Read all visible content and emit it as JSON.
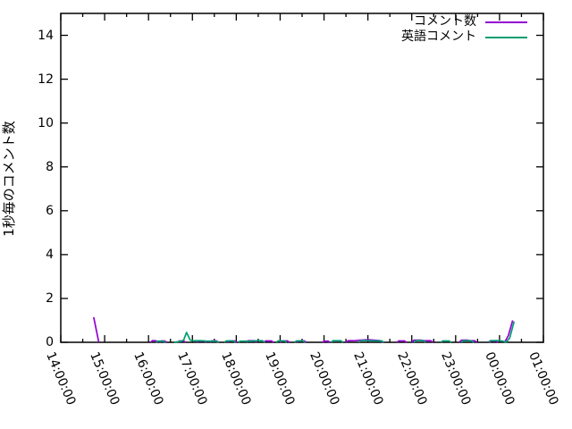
{
  "chart_data": {
    "type": "line",
    "title": "",
    "xlabel": "",
    "ylabel": "1秒毎のコメント数",
    "ylim": [
      0,
      15
    ],
    "ytick_values": [
      0,
      2,
      4,
      6,
      8,
      10,
      12,
      14
    ],
    "xtick_labels": [
      "14:00:00",
      "15:00:00",
      "16:00:00",
      "17:00:00",
      "18:00:00",
      "19:00:00",
      "20:00:00",
      "21:00:00",
      "22:00:00",
      "23:00:00",
      "00:00:00",
      "01:00:00"
    ],
    "x_minor_ticks_every_minutes": 30,
    "grid": false,
    "legend_position": "top-right-inside",
    "background_color": "#ffffff",
    "border_color": "#000000",
    "text_color": "#000000",
    "series": [
      {
        "name": "コメント数",
        "color": "#9400d3",
        "segments": [
          [
            [
              "14:45",
              1.15
            ],
            [
              "14:52",
              0
            ]
          ],
          [
            [
              "16:03",
              0
            ],
            [
              "16:05",
              0.07
            ],
            [
              "16:10",
              0.07
            ],
            [
              "16:13",
              0
            ]
          ],
          [
            [
              "16:15",
              0
            ],
            [
              "16:17",
              0.06
            ],
            [
              "16:22",
              0.06
            ],
            [
              "16:25",
              0
            ]
          ],
          [
            [
              "16:40",
              0
            ],
            [
              "16:42",
              0.06
            ],
            [
              "16:48",
              0.06
            ],
            [
              "16:51",
              0
            ]
          ],
          [
            [
              "17:06",
              0
            ],
            [
              "17:08",
              0.06
            ],
            [
              "17:16",
              0.06
            ],
            [
              "17:19",
              0
            ]
          ],
          [
            [
              "17:24",
              0
            ],
            [
              "17:26",
              0.06
            ],
            [
              "17:33",
              0.06
            ],
            [
              "17:36",
              0
            ]
          ],
          [
            [
              "17:48",
              0
            ],
            [
              "17:50",
              0.06
            ],
            [
              "17:58",
              0.06
            ],
            [
              "18:01",
              0
            ]
          ],
          [
            [
              "18:14",
              0
            ],
            [
              "18:16",
              0.07
            ],
            [
              "18:25",
              0.07
            ],
            [
              "18:28",
              0
            ]
          ],
          [
            [
              "18:38",
              0
            ],
            [
              "18:40",
              0.06
            ],
            [
              "18:48",
              0.06
            ],
            [
              "18:51",
              0
            ]
          ],
          [
            [
              "19:00",
              0
            ],
            [
              "19:02",
              0.06
            ],
            [
              "19:10",
              0.06
            ],
            [
              "19:13",
              0
            ]
          ],
          [
            [
              "19:23",
              0
            ],
            [
              "19:25",
              0.06
            ],
            [
              "19:33",
              0.06
            ],
            [
              "19:36",
              0
            ]
          ],
          [
            [
              "19:58",
              0
            ],
            [
              "20:00",
              0.05
            ],
            [
              "20:06",
              0.05
            ],
            [
              "20:08",
              0
            ]
          ],
          [
            [
              "20:30",
              0
            ],
            [
              "20:33",
              0.07
            ],
            [
              "20:43",
              0.08
            ],
            [
              "20:50",
              0.1
            ],
            [
              "21:00",
              0.12
            ],
            [
              "21:08",
              0.1
            ],
            [
              "21:16",
              0.08
            ],
            [
              "21:20",
              0
            ]
          ],
          [
            [
              "21:40",
              0
            ],
            [
              "21:42",
              0.06
            ],
            [
              "21:50",
              0.06
            ],
            [
              "21:53",
              0
            ]
          ],
          [
            [
              "22:00",
              0
            ],
            [
              "22:03",
              0.1
            ],
            [
              "22:12",
              0.1
            ],
            [
              "22:18",
              0.07
            ],
            [
              "22:26",
              0.07
            ],
            [
              "22:29",
              0
            ]
          ],
          [
            [
              "23:05",
              0
            ],
            [
              "23:08",
              0.1
            ],
            [
              "23:16",
              0.1
            ],
            [
              "23:20",
              0.07
            ],
            [
              "23:26",
              0.07
            ],
            [
              "23:29",
              0
            ]
          ],
          [
            [
              "23:45",
              0
            ],
            [
              "23:47",
              0.06
            ],
            [
              "23:55",
              0.06
            ],
            [
              "23:58",
              0
            ]
          ],
          [
            [
              "00:07",
              0
            ],
            [
              "00:12",
              0.3
            ],
            [
              "00:18",
              1.0
            ]
          ]
        ]
      },
      {
        "name": "英語コメント",
        "color": "#009e73",
        "segments": [
          [
            [
              "16:10",
              0
            ],
            [
              "16:12",
              0.05
            ],
            [
              "16:20",
              0.05
            ],
            [
              "16:23",
              0
            ]
          ],
          [
            [
              "16:35",
              0
            ],
            [
              "16:45",
              0.05
            ],
            [
              "16:48",
              0.1
            ],
            [
              "16:52",
              0.45
            ],
            [
              "16:57",
              0.1
            ],
            [
              "17:02",
              0.07
            ],
            [
              "17:12",
              0.07
            ],
            [
              "17:20",
              0.05
            ],
            [
              "17:32",
              0.05
            ],
            [
              "17:36",
              0
            ]
          ],
          [
            [
              "17:44",
              0
            ],
            [
              "17:46",
              0.06
            ],
            [
              "17:56",
              0.06
            ],
            [
              "17:59",
              0
            ]
          ],
          [
            [
              "18:03",
              0
            ],
            [
              "18:05",
              0.05
            ],
            [
              "18:20",
              0.05
            ],
            [
              "18:28",
              0.07
            ],
            [
              "18:36",
              0.07
            ],
            [
              "18:39",
              0
            ]
          ],
          [
            [
              "18:55",
              0
            ],
            [
              "18:57",
              0.06
            ],
            [
              "19:06",
              0.06
            ],
            [
              "19:09",
              0
            ]
          ],
          [
            [
              "19:20",
              0
            ],
            [
              "19:22",
              0.06
            ],
            [
              "19:31",
              0.06
            ],
            [
              "19:34",
              0
            ]
          ],
          [
            [
              "20:10",
              0
            ],
            [
              "20:12",
              0.07
            ],
            [
              "20:23",
              0.07
            ],
            [
              "20:26",
              0
            ]
          ],
          [
            [
              "20:48",
              0
            ],
            [
              "20:50",
              0.08
            ],
            [
              "21:00",
              0.08
            ],
            [
              "21:10",
              0.06
            ],
            [
              "21:19",
              0.06
            ],
            [
              "21:22",
              0
            ]
          ],
          [
            [
              "22:03",
              0
            ],
            [
              "22:06",
              0.08
            ],
            [
              "22:16",
              0.08
            ],
            [
              "22:19",
              0
            ]
          ],
          [
            [
              "22:40",
              0
            ],
            [
              "22:42",
              0.06
            ],
            [
              "22:51",
              0.06
            ],
            [
              "22:54",
              0
            ]
          ],
          [
            [
              "23:08",
              0
            ],
            [
              "23:10",
              0.07
            ],
            [
              "23:21",
              0.07
            ],
            [
              "23:25",
              0
            ]
          ],
          [
            [
              "23:46",
              0
            ],
            [
              "23:48",
              0.08
            ],
            [
              "23:59",
              0.08
            ],
            [
              "00:05",
              0.05
            ],
            [
              "00:09",
              0
            ],
            [
              "00:14",
              0.2
            ],
            [
              "00:20",
              0.95
            ]
          ]
        ]
      }
    ]
  }
}
